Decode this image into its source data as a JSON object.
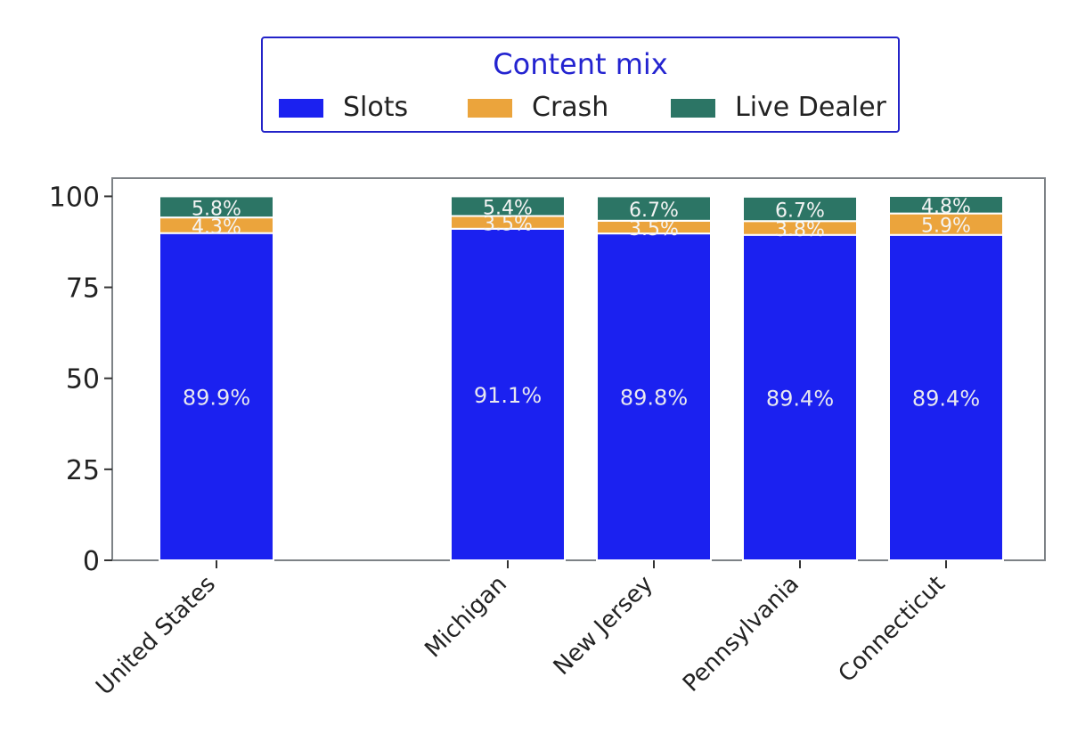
{
  "chart_data": {
    "type": "bar",
    "stacked": true,
    "title": "",
    "xlabel": "",
    "ylabel": "",
    "ylim": [
      0,
      105
    ],
    "yticks": [
      0,
      25,
      50,
      75,
      100
    ],
    "legend": {
      "title": "Content mix",
      "placement": "top-center"
    },
    "categories": [
      "United States",
      "",
      "Michigan",
      "New Jersey",
      "Pennsylvania",
      "Connecticut"
    ],
    "series": [
      {
        "name": "Slots",
        "color": "#1b21f0",
        "values": [
          89.9,
          null,
          91.1,
          89.8,
          89.4,
          89.4
        ],
        "labels": [
          "89.9%",
          null,
          "91.1%",
          "89.8%",
          "89.4%",
          "89.4%"
        ]
      },
      {
        "name": "Crash",
        "color": "#eba43c",
        "values": [
          4.3,
          null,
          3.5,
          3.5,
          3.8,
          5.9
        ],
        "labels": [
          "4.3%",
          null,
          "3.5%",
          "3.5%",
          "3.8%",
          "5.9%"
        ]
      },
      {
        "name": "Live Dealer",
        "color": "#2c7565",
        "values": [
          5.8,
          null,
          5.4,
          6.7,
          6.7,
          4.8
        ],
        "labels": [
          "5.8%",
          null,
          "5.4%",
          "6.7%",
          "6.7%",
          "4.8%"
        ]
      }
    ]
  }
}
